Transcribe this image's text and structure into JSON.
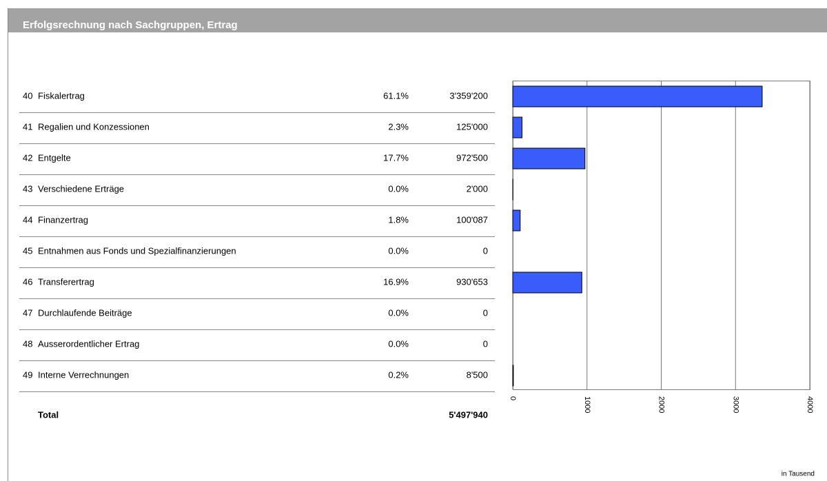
{
  "header": {
    "title": "Erfolgsrechnung nach Sachgruppen, Ertrag"
  },
  "table": {
    "rows": [
      [
        "40",
        "Fiskalertrag",
        "61.1%",
        "3'359'200"
      ],
      [
        "41",
        "Regalien und Konzessionen",
        "2.3%",
        "125'000"
      ],
      [
        "42",
        "Entgelte",
        "17.7%",
        "972'500"
      ],
      [
        "43",
        "Verschiedene Erträge",
        "0.0%",
        "2'000"
      ],
      [
        "44",
        "Finanzertrag",
        "1.8%",
        "100'087"
      ],
      [
        "45",
        "Entnahmen aus Fonds und Spezialfinanzierungen",
        "0.0%",
        "0"
      ],
      [
        "46",
        "Transferertrag",
        "16.9%",
        "930'653"
      ],
      [
        "47",
        "Durchlaufende Beiträge",
        "0.0%",
        "0"
      ],
      [
        "48",
        "Ausserordentlicher Ertrag",
        "0.0%",
        "0"
      ],
      [
        "49",
        "Interne Verrechnungen",
        "0.2%",
        "8'500"
      ]
    ],
    "total": {
      "label": "Total",
      "amount": "5'497'940"
    }
  },
  "chart_data": {
    "type": "bar",
    "orientation": "horizontal",
    "values": [
      3359.2,
      125,
      972.5,
      2,
      100.087,
      0,
      930.653,
      0,
      0,
      8.5
    ],
    "color": "#3a5cfa",
    "xlim": [
      0,
      4000
    ],
    "xticks": [
      0,
      1000,
      2000,
      3000,
      4000
    ],
    "grid": true,
    "unit_note": "in Tausend"
  }
}
